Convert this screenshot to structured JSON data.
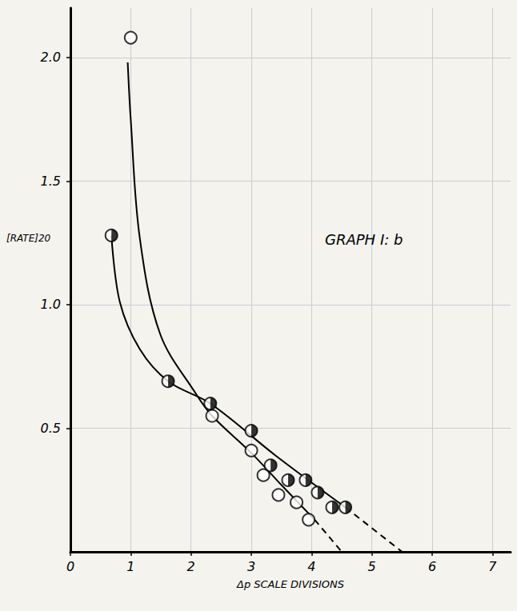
{
  "chart_data": {
    "type": "scatter",
    "title": "GRAPH I: b",
    "x_label": "Δp SCALE DIVISIONS",
    "y_label": "[RATE]20",
    "xlim": [
      0,
      7.3
    ],
    "xticks": [
      0,
      1,
      2,
      3,
      4,
      5,
      6,
      7
    ],
    "ylim": [
      0,
      2.2
    ],
    "yticks": [
      0.5,
      {
        "value": 1,
        "label": "1.0"
      },
      1.5,
      {
        "value": 2,
        "label": "2.0"
      }
    ],
    "grid": true,
    "series": [
      {
        "type": "line",
        "line_style": "solid",
        "color": "#000000",
        "x": [
          0.95,
          1.0,
          1.15,
          1.49,
          2.08,
          2.35,
          3.0,
          3.5,
          4.05
        ],
        "values": [
          1.98,
          1.75,
          1.27,
          0.88,
          0.64,
          0.55,
          0.4,
          0.27,
          0.13
        ]
      },
      {
        "type": "line",
        "line_style": "dashed",
        "color": "#000000",
        "x": [
          4.05,
          4.5
        ],
        "values": [
          0.13,
          0
        ]
      },
      {
        "type": "line",
        "line_style": "solid",
        "color": "#000000",
        "x": [
          0.68,
          0.82,
          1.15,
          1.62,
          2.32,
          3.4,
          4.56
        ],
        "values": [
          1.28,
          1.01,
          0.82,
          0.69,
          0.6,
          0.39,
          0.18
        ]
      },
      {
        "type": "line",
        "line_style": "dashed",
        "color": "#000000",
        "x": [
          4.56,
          5.5
        ],
        "values": [
          0.18,
          0
        ]
      },
      {
        "type": "scatter",
        "marker": "open_circle",
        "color": "#000000",
        "x": [
          1.0,
          2.35,
          3.0,
          3.2,
          3.45,
          3.75,
          3.95
        ],
        "values": [
          2.08,
          0.55,
          0.41,
          0.31,
          0.23,
          0.2,
          0.13
        ]
      },
      {
        "type": "scatter",
        "marker": "half_filled_circle",
        "color": "#000000",
        "x": [
          0.68,
          1.62,
          2.32,
          3.0,
          3.32,
          3.61,
          3.9,
          4.1,
          4.34,
          4.56
        ],
        "values": [
          1.28,
          0.69,
          0.6,
          0.49,
          0.35,
          0.29,
          0.29,
          0.24,
          0.18,
          0.18
        ]
      }
    ]
  }
}
